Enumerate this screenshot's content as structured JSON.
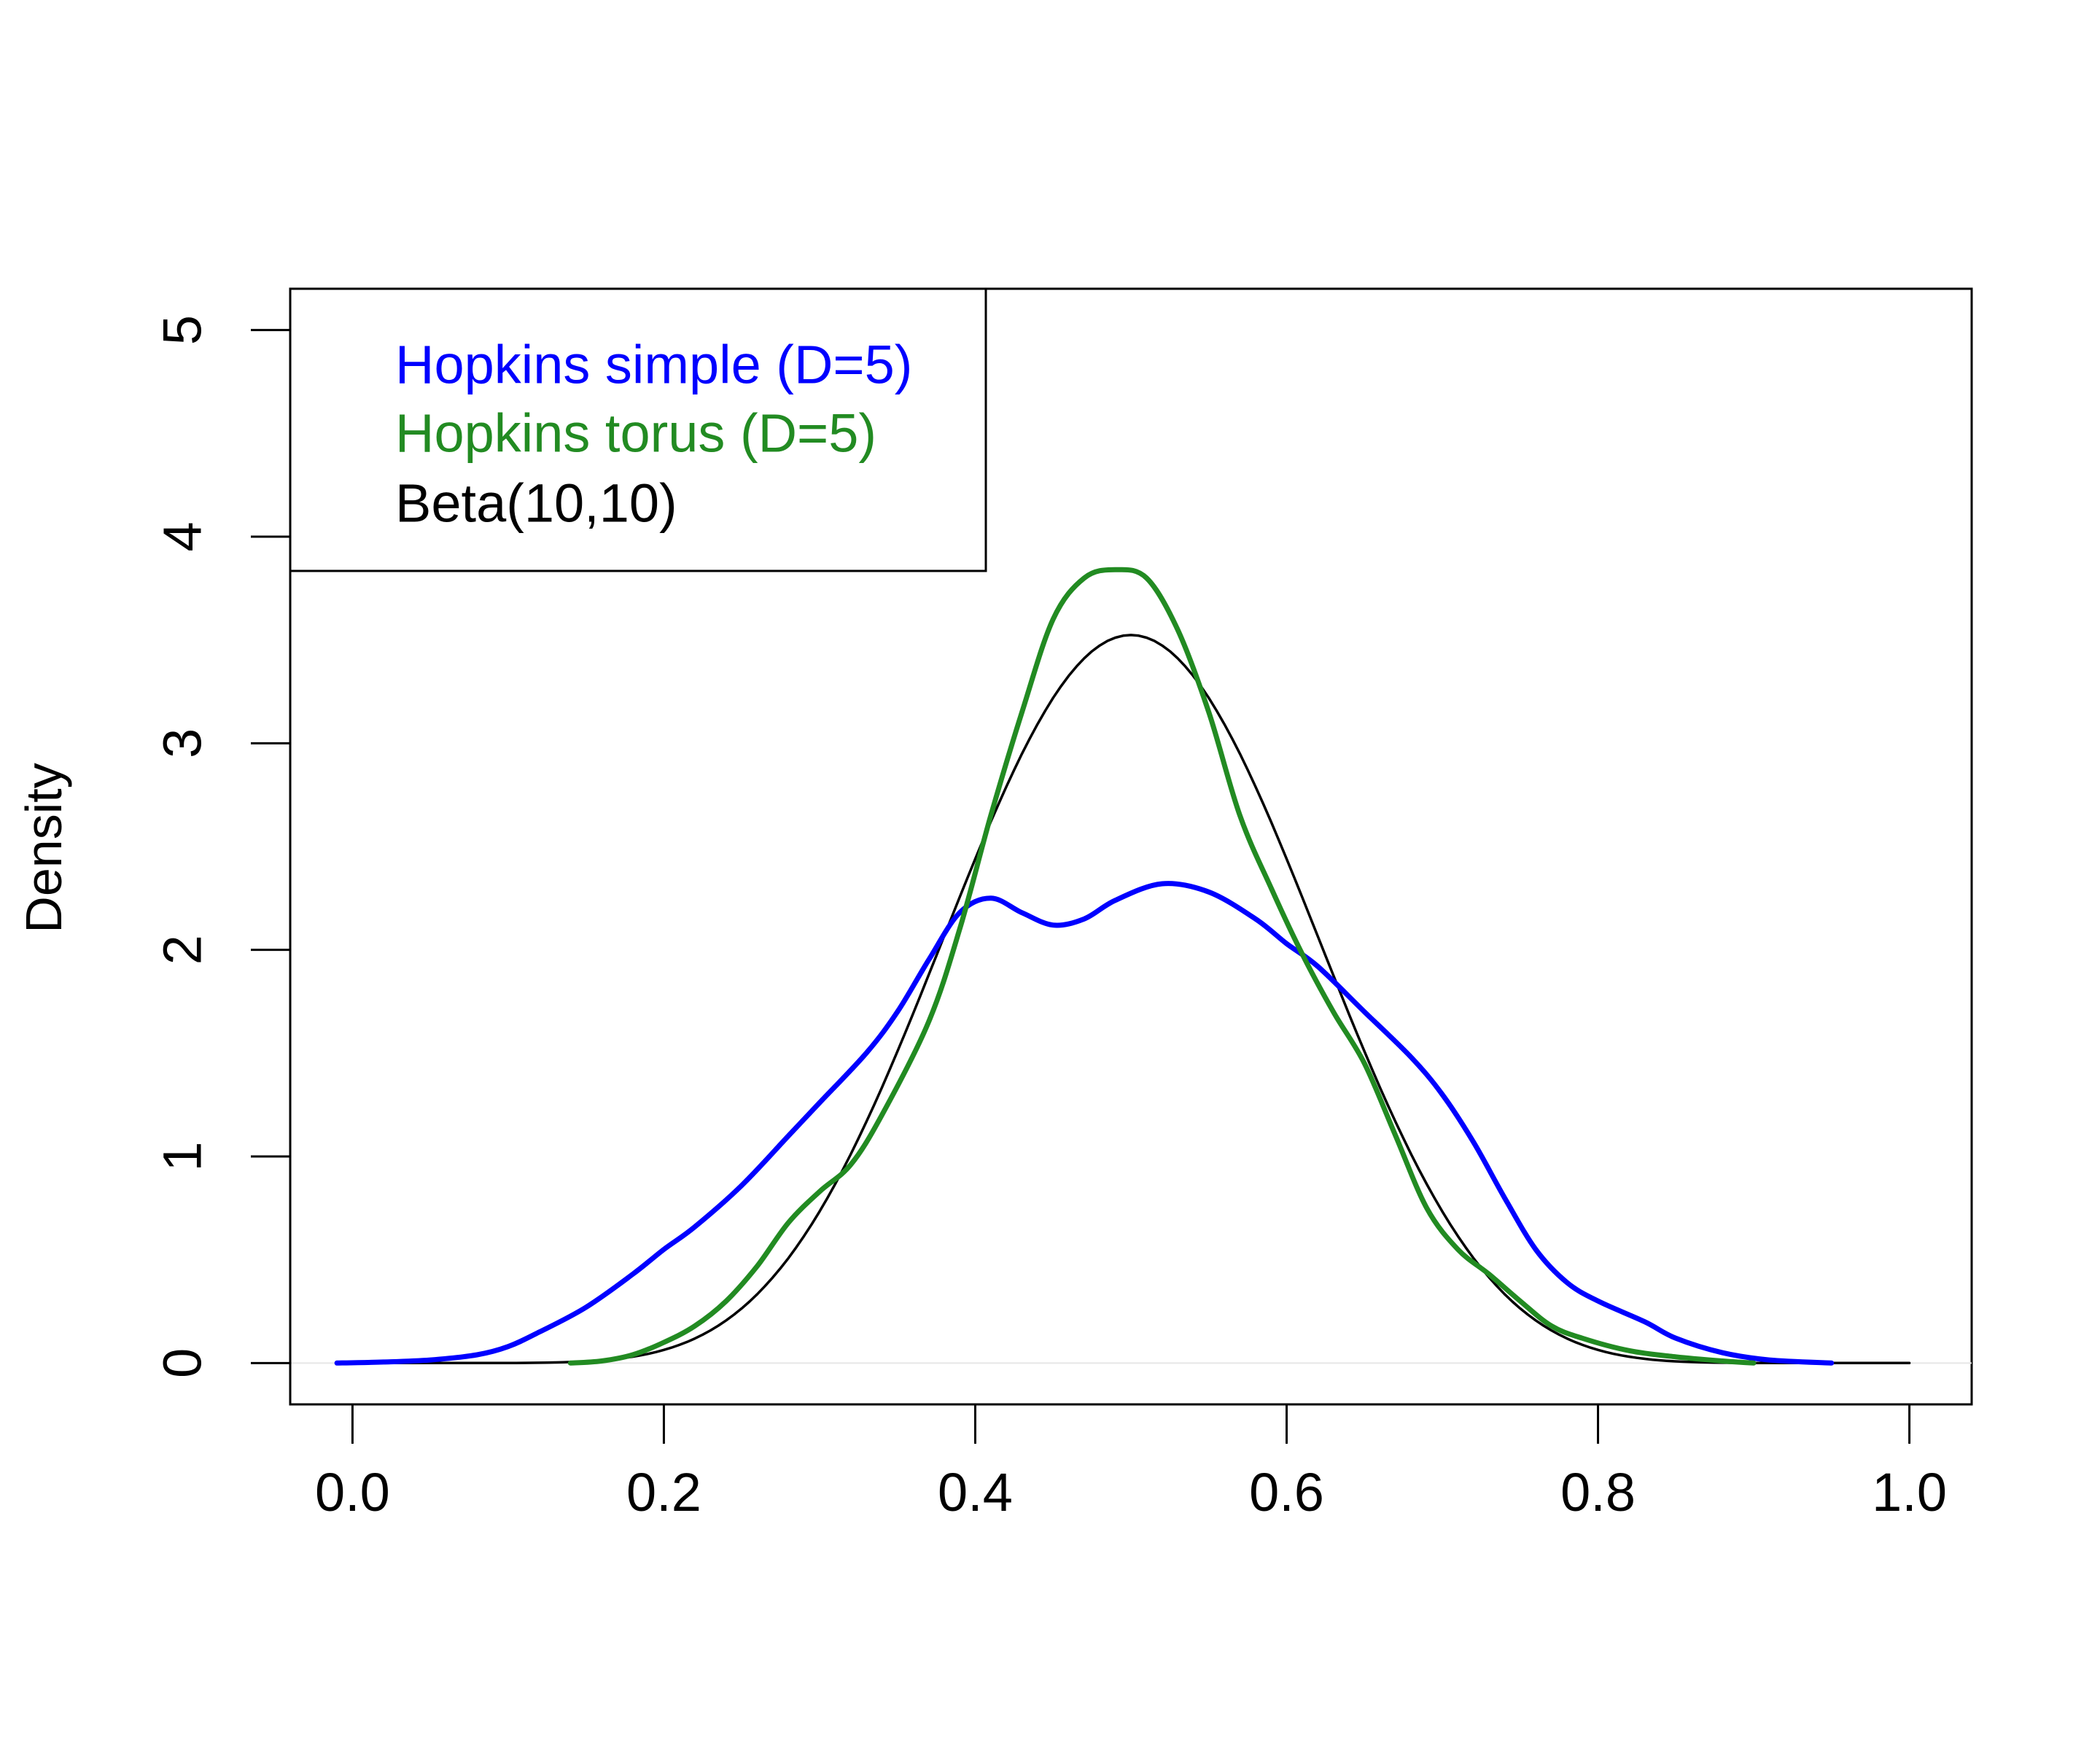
{
  "chart_data": {
    "type": "line",
    "title": "",
    "xlabel": "",
    "ylabel": "Density",
    "xlim": [
      -0.04,
      1.04
    ],
    "ylim": [
      -0.2,
      5.2
    ],
    "x_ticks": [
      "0.0",
      "0.2",
      "0.4",
      "0.6",
      "0.8",
      "1.0"
    ],
    "y_ticks": [
      "0",
      "1",
      "2",
      "3",
      "4",
      "5"
    ],
    "grid": false,
    "legend_position": "top-left",
    "series": [
      {
        "name": "Hopkins simple (D=5)",
        "color": "#0000FF",
        "points": [
          [
            -0.01,
            0.0
          ],
          [
            0.02,
            0.005
          ],
          [
            0.05,
            0.015
          ],
          [
            0.08,
            0.04
          ],
          [
            0.1,
            0.08
          ],
          [
            0.12,
            0.15
          ],
          [
            0.15,
            0.27
          ],
          [
            0.18,
            0.43
          ],
          [
            0.2,
            0.55
          ],
          [
            0.22,
            0.66
          ],
          [
            0.25,
            0.86
          ],
          [
            0.28,
            1.1
          ],
          [
            0.3,
            1.26
          ],
          [
            0.33,
            1.5
          ],
          [
            0.35,
            1.7
          ],
          [
            0.37,
            1.95
          ],
          [
            0.39,
            2.18
          ],
          [
            0.41,
            2.25
          ],
          [
            0.43,
            2.18
          ],
          [
            0.45,
            2.12
          ],
          [
            0.47,
            2.15
          ],
          [
            0.49,
            2.24
          ],
          [
            0.52,
            2.32
          ],
          [
            0.55,
            2.28
          ],
          [
            0.58,
            2.15
          ],
          [
            0.6,
            2.03
          ],
          [
            0.62,
            1.92
          ],
          [
            0.65,
            1.7
          ],
          [
            0.68,
            1.48
          ],
          [
            0.7,
            1.3
          ],
          [
            0.72,
            1.07
          ],
          [
            0.74,
            0.8
          ],
          [
            0.76,
            0.55
          ],
          [
            0.78,
            0.39
          ],
          [
            0.8,
            0.3
          ],
          [
            0.83,
            0.2
          ],
          [
            0.85,
            0.12
          ],
          [
            0.88,
            0.05
          ],
          [
            0.91,
            0.015
          ],
          [
            0.95,
            0.0
          ]
        ]
      },
      {
        "name": "Hopkins torus (D=5)",
        "color": "#228B22",
        "points": [
          [
            0.14,
            0.0
          ],
          [
            0.16,
            0.01
          ],
          [
            0.18,
            0.04
          ],
          [
            0.2,
            0.1
          ],
          [
            0.22,
            0.18
          ],
          [
            0.24,
            0.3
          ],
          [
            0.26,
            0.47
          ],
          [
            0.28,
            0.68
          ],
          [
            0.3,
            0.83
          ],
          [
            0.32,
            0.96
          ],
          [
            0.34,
            1.2
          ],
          [
            0.37,
            1.65
          ],
          [
            0.39,
            2.1
          ],
          [
            0.41,
            2.65
          ],
          [
            0.43,
            3.15
          ],
          [
            0.45,
            3.6
          ],
          [
            0.47,
            3.8
          ],
          [
            0.49,
            3.84
          ],
          [
            0.51,
            3.8
          ],
          [
            0.53,
            3.55
          ],
          [
            0.55,
            3.15
          ],
          [
            0.57,
            2.65
          ],
          [
            0.59,
            2.3
          ],
          [
            0.61,
            1.98
          ],
          [
            0.63,
            1.7
          ],
          [
            0.65,
            1.45
          ],
          [
            0.67,
            1.1
          ],
          [
            0.69,
            0.75
          ],
          [
            0.71,
            0.55
          ],
          [
            0.73,
            0.43
          ],
          [
            0.75,
            0.3
          ],
          [
            0.77,
            0.18
          ],
          [
            0.79,
            0.12
          ],
          [
            0.82,
            0.06
          ],
          [
            0.85,
            0.03
          ],
          [
            0.88,
            0.01
          ],
          [
            0.9,
            0.0
          ]
        ]
      },
      {
        "name": "Beta(10,10)",
        "color": "#000000",
        "distribution": {
          "family": "beta",
          "alpha": 10,
          "beta": 10,
          "x_range": [
            0.0,
            1.0
          ]
        }
      }
    ]
  }
}
